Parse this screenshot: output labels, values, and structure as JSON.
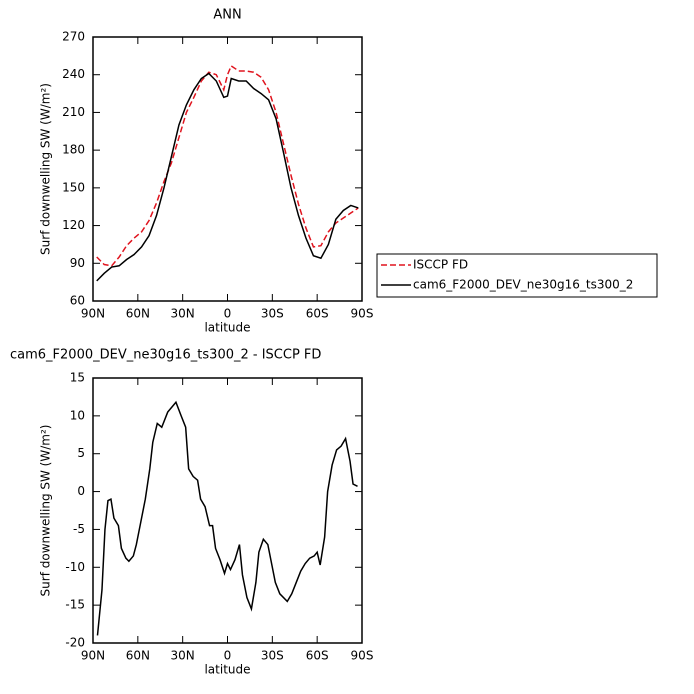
{
  "chart_data": [
    {
      "type": "line",
      "title": "ANN",
      "xlabel": "latitude",
      "ylabel": "Surf downwelling SW (W/m²)",
      "x": [
        87.5,
        82.5,
        77.5,
        72.5,
        67.5,
        62.5,
        57.5,
        52.5,
        47.5,
        42.5,
        37.5,
        32.5,
        27.5,
        22.5,
        17.5,
        12.5,
        7.5,
        2.5,
        0,
        -2.5,
        -7.5,
        -12.5,
        -17.5,
        -22.5,
        -27.5,
        -32.5,
        -37.5,
        -42.5,
        -47.5,
        -52.5,
        -57.5,
        -62.5,
        -67.5,
        -72.5,
        -77.5,
        -82.5,
        -87.5
      ],
      "series": [
        {
          "name": "ISCCP FD",
          "color": "#e0141e",
          "dash": true,
          "values": [
            95,
            89,
            88,
            95,
            104,
            110,
            115,
            124,
            138,
            155,
            170,
            190,
            210,
            222,
            235,
            242,
            240,
            228,
            240,
            247,
            243,
            243,
            242,
            238,
            228,
            210,
            185,
            160,
            137,
            118,
            103,
            104,
            115,
            122,
            126,
            130,
            134
          ]
        },
        {
          "name": "cam6_F2000_DEV_ne30g16_ts300_2",
          "color": "#000000",
          "dash": false,
          "values": [
            76,
            82,
            87,
            88,
            93,
            97,
            103,
            112,
            128,
            150,
            175,
            200,
            216,
            228,
            237,
            241,
            235,
            222,
            223,
            237,
            235,
            235,
            229,
            225,
            220,
            205,
            178,
            150,
            128,
            110,
            96,
            94,
            105,
            125,
            132,
            136,
            134
          ]
        }
      ],
      "xlim": [
        90,
        -90
      ],
      "xticks": [
        {
          "value": 90,
          "label": "90N"
        },
        {
          "value": 60,
          "label": "60N"
        },
        {
          "value": 30,
          "label": "30N"
        },
        0,
        {
          "value": -30,
          "label": "30S"
        },
        {
          "value": -60,
          "label": "60S"
        },
        {
          "value": -90,
          "label": "90S"
        }
      ],
      "ylim": [
        60,
        270
      ],
      "yticks": [
        60,
        90,
        120,
        150,
        180,
        210,
        240,
        270
      ],
      "legend": "right"
    },
    {
      "type": "line",
      "title": "cam6_F2000_DEV_ne30g16_ts300_2 - ISCCP FD",
      "xlabel": "latitude",
      "ylabel": "Surf downwelling SW (W/m²)",
      "x": [
        87,
        84,
        82,
        80,
        78,
        76,
        73,
        71,
        68,
        66,
        63,
        61,
        58,
        55,
        52,
        50,
        47,
        44,
        40,
        34.5,
        31,
        28,
        26,
        23,
        20,
        18,
        15,
        12,
        10,
        8,
        5,
        2,
        0,
        -2,
        -5,
        -8,
        -10,
        -13,
        -16,
        -19,
        -21,
        -24,
        -27,
        -29,
        -32,
        -35,
        -40,
        -43,
        -46,
        -49,
        -52,
        -55,
        -58,
        -60,
        -62,
        -65,
        -67,
        -70,
        -73,
        -76,
        -79,
        -82,
        -84,
        -87
      ],
      "values": [
        -19,
        -13,
        -5,
        -1.2,
        -1,
        -3.5,
        -4.5,
        -7.5,
        -8.8,
        -9.2,
        -8.5,
        -7,
        -4,
        -1,
        3,
        6.5,
        9,
        8.5,
        10.5,
        11.8,
        10,
        8.5,
        3,
        2,
        1.5,
        -1,
        -2,
        -4.5,
        -4.5,
        -7.5,
        -9,
        -10.8,
        -9.5,
        -10.3,
        -9,
        -7,
        -11,
        -14,
        -15.5,
        -12,
        -8,
        -6.3,
        -7,
        -9,
        -12,
        -13.5,
        -14.5,
        -13.5,
        -12,
        -10.5,
        -9.5,
        -8.8,
        -8.5,
        -8,
        -9.7,
        -6,
        0,
        3.5,
        5.5,
        6,
        7,
        4,
        1,
        0.7
      ],
      "color": "#000000",
      "xlim": [
        90,
        -90
      ],
      "xticks": [
        {
          "value": 90,
          "label": "90N"
        },
        {
          "value": 60,
          "label": "60N"
        },
        {
          "value": 30,
          "label": "30N"
        },
        0,
        {
          "value": -30,
          "label": "30S"
        },
        {
          "value": -60,
          "label": "60S"
        },
        {
          "value": -90,
          "label": "90S"
        }
      ],
      "ylim": [
        -20,
        15
      ],
      "yticks": [
        -20,
        -15,
        -10,
        -5,
        0,
        5,
        10,
        15
      ]
    }
  ]
}
